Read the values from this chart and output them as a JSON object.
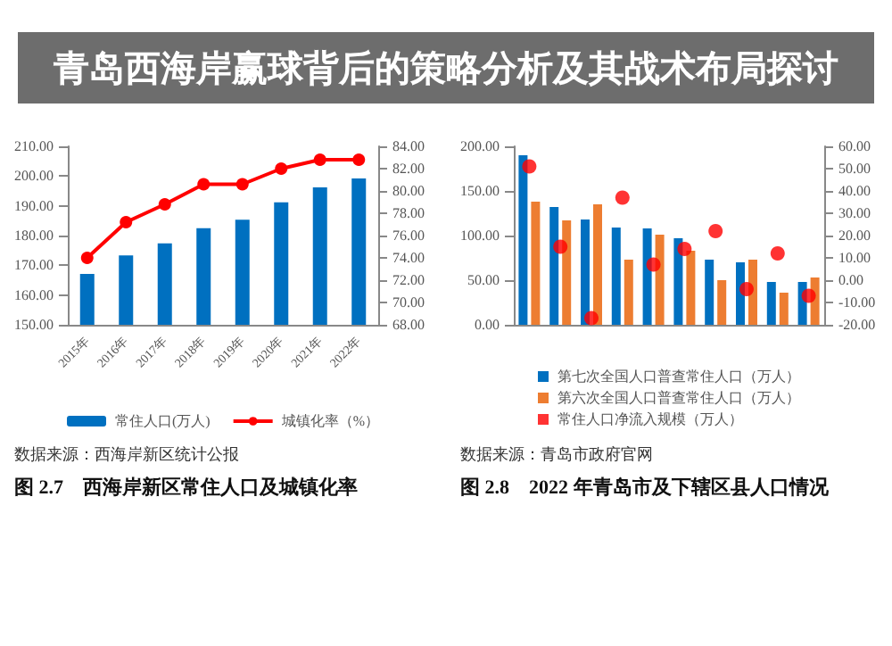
{
  "chart_data": [
    {
      "type": "bar",
      "title": "图 2.7　西海岸新区常住人口及城镇化率",
      "annotations": [
        "数据来源：西海岸新区统计公报"
      ],
      "categories": [
        "2015年",
        "2016年",
        "2017年",
        "2018年",
        "2019年",
        "2020年",
        "2021年",
        "2022年"
      ],
      "series": [
        {
          "name": "常住人口(万人)",
          "color": "#0070c0",
          "values": [
            167.1,
            173.3,
            177.4,
            182.5,
            185.3,
            191.2,
            196.2,
            199.2
          ]
        },
        {
          "name": "城镇化率（%）",
          "type": "line",
          "axis": "y2",
          "marker": "circle",
          "color": "#ff0000",
          "values": [
            74.0,
            77.2,
            78.8,
            80.6,
            80.6,
            82.0,
            82.8,
            82.8
          ]
        }
      ],
      "ylim": [
        150,
        210
      ],
      "yticks": [
        {
          "value": 150,
          "label": "150.00"
        },
        {
          "value": 160,
          "label": "160.00"
        },
        {
          "value": 170,
          "label": "170.00"
        },
        {
          "value": 180,
          "label": "180.00"
        },
        {
          "value": 190,
          "label": "190.00"
        },
        {
          "value": 200,
          "label": "200.00"
        },
        {
          "value": 210,
          "label": "210.00"
        }
      ],
      "y2lim": [
        68,
        84
      ],
      "y2ticks": [
        {
          "value": 68,
          "label": "68.00"
        },
        {
          "value": 70,
          "label": "70.00"
        },
        {
          "value": 72,
          "label": "72.00"
        },
        {
          "value": 74,
          "label": "74.00"
        },
        {
          "value": 76,
          "label": "76.00"
        },
        {
          "value": 78,
          "label": "78.00"
        },
        {
          "value": 80,
          "label": "80.00"
        },
        {
          "value": 82,
          "label": "82.00"
        },
        {
          "value": 84,
          "label": "84.00"
        }
      ],
      "grid": false,
      "legend": "bottom"
    },
    {
      "type": "bar",
      "title": "图 2.8　2022 年青岛市及下辖区县人口情况",
      "annotations": [
        "数据来源：青岛市政府官网"
      ],
      "categories": [
        null,
        null,
        null,
        null,
        null,
        null,
        null,
        null,
        null,
        null
      ],
      "series": [
        {
          "name": "第七次全国人口普查常住人口（万人）",
          "color": "#0070c0",
          "values": [
            190,
            132,
            118,
            109,
            108,
            97,
            73,
            70,
            48,
            48
          ]
        },
        {
          "name": "第六次全国人口普查常住人口（万人）",
          "color": "#ed7d31",
          "values": [
            138,
            117,
            135,
            73,
            101,
            83,
            50,
            73,
            36,
            53
          ]
        },
        {
          "name": "常住人口净流入规模（万人）",
          "type": "scatter",
          "axis": "y2",
          "marker": "circle",
          "color": "#ff0000",
          "values": [
            51,
            15,
            -17,
            37,
            7,
            14,
            22,
            -4,
            12,
            -7
          ]
        }
      ],
      "ylim": [
        0,
        200
      ],
      "yticks": [
        {
          "value": 0,
          "label": "0.00"
        },
        {
          "value": 50,
          "label": "50.00"
        },
        {
          "value": 100,
          "label": "100.00"
        },
        {
          "value": 150,
          "label": "150.00"
        },
        {
          "value": 200,
          "label": "200.00"
        }
      ],
      "y2lim": [
        -20,
        60
      ],
      "y2ticks": [
        {
          "value": -20,
          "label": "-20.00"
        },
        {
          "value": -10,
          "label": "-10.00"
        },
        {
          "value": 0,
          "label": "0.00"
        },
        {
          "value": 10,
          "label": "10.00"
        },
        {
          "value": 20,
          "label": "20.00"
        },
        {
          "value": 30,
          "label": "30.00"
        },
        {
          "value": 40,
          "label": "40.00"
        },
        {
          "value": 50,
          "label": "50.00"
        },
        {
          "value": 60,
          "label": "60.00"
        }
      ],
      "grid": false,
      "legend": "bottom"
    },
    {
      "type": "other",
      "title": "青岛西海岸赢球背后的策略分析及其战术布局探讨"
    }
  ]
}
